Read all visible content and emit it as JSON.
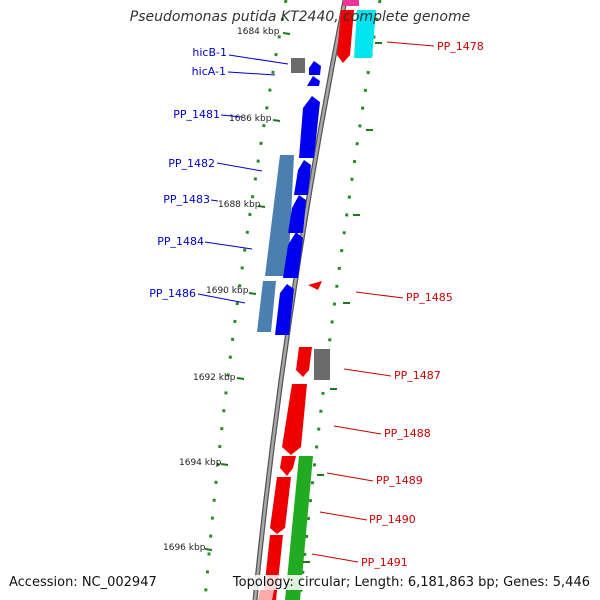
{
  "title": "Pseudomonas putida KT2440, complete genome",
  "accession": "Accession: NC_002947",
  "topology": "Topology: circular; Length: 6,181,863 bp; Genes: 5,446",
  "colors": {
    "cds_forward": "#0000ee",
    "cds_reverse": "#ee0000",
    "blue_gray": "#4a7fb0",
    "gray": "#666666",
    "cyan": "#00e5ee",
    "green": "#22aa22",
    "pink": "#ee3399",
    "backbone": "#808080",
    "tick": "#1a7a1a",
    "label_blue": "#0000cc",
    "label_red": "#cc0000"
  },
  "ticks": [
    "1684 kbp",
    "1686 kbp",
    "1688 kbp",
    "1690 kbp",
    "1692 kbp",
    "1694 kbp",
    "1696 kbp"
  ],
  "genes_left": [
    "hicB-1",
    "hicA-1",
    "PP_1481",
    "PP_1482",
    "PP_1483",
    "PP_1484",
    "PP_1486"
  ],
  "genes_right": [
    "PP_1478",
    "PP_1485",
    "PP_1487",
    "PP_1488",
    "PP_1489",
    "PP_1490",
    "PP_1491"
  ]
}
